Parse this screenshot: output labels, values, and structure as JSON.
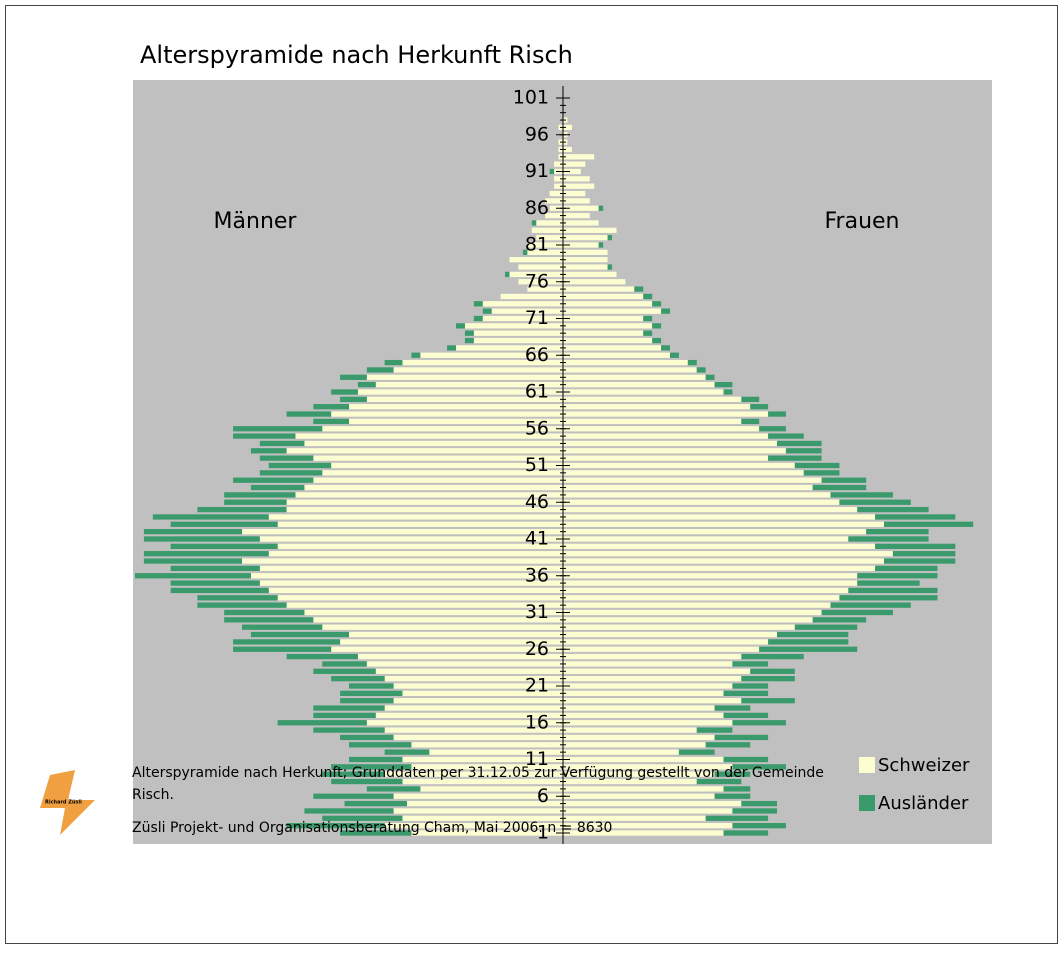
{
  "chart_data": {
    "type": "pyramid",
    "title": "Alterspyramide nach Herkunft Risch",
    "y": [
      1,
      2,
      3,
      4,
      5,
      6,
      7,
      8,
      9,
      10,
      11,
      12,
      13,
      14,
      15,
      16,
      17,
      18,
      19,
      20,
      21,
      22,
      23,
      24,
      25,
      26,
      27,
      28,
      29,
      30,
      31,
      32,
      33,
      34,
      35,
      36,
      37,
      38,
      39,
      40,
      41,
      42,
      43,
      44,
      45,
      46,
      47,
      48,
      49,
      50,
      51,
      52,
      53,
      54,
      55,
      56,
      57,
      58,
      59,
      60,
      61,
      62,
      63,
      64,
      65,
      66,
      67,
      68,
      69,
      70,
      71,
      72,
      73,
      74,
      75,
      76,
      77,
      78,
      79,
      80,
      81,
      82,
      83,
      84,
      85,
      86,
      87,
      88,
      89,
      90,
      91,
      92,
      93,
      94,
      95,
      96,
      97,
      98,
      99,
      100,
      101
    ],
    "ylim": [
      1,
      101
    ],
    "yticks": [
      1,
      6,
      11,
      16,
      21,
      26,
      31,
      36,
      41,
      46,
      51,
      56,
      61,
      66,
      71,
      76,
      81,
      86,
      91,
      96,
      101
    ],
    "sides": [
      {
        "label": "Männer",
        "series": [
          {
            "name": "Schweizer",
            "color": "#fdfdd2",
            "values": [
              34,
              40,
              36,
              38,
              35,
              38,
              32,
              36,
              40,
              34,
              36,
              30,
              34,
              38,
              40,
              44,
              42,
              40,
              38,
              36,
              38,
              40,
              42,
              44,
              46,
              52,
              50,
              48,
              54,
              56,
              58,
              62,
              64,
              66,
              68,
              70,
              68,
              72,
              66,
              64,
              68,
              72,
              64,
              66,
              62,
              62,
              60,
              58,
              56,
              54,
              52,
              56,
              62,
              58,
              60,
              54,
              48,
              52,
              48,
              44,
              46,
              42,
              44,
              38,
              36,
              32,
              24,
              20,
              20,
              22,
              18,
              16,
              18,
              14,
              8,
              10,
              12,
              10,
              12,
              8,
              8,
              6,
              7,
              6,
              4,
              3,
              4,
              3,
              2,
              2,
              2,
              2,
              1,
              1,
              1,
              0,
              1,
              0,
              0,
              0,
              0
            ]
          },
          {
            "name": "Ausländer",
            "color": "#3a9a6c",
            "values": [
              16,
              22,
              18,
              20,
              14,
              18,
              12,
              16,
              14,
              18,
              12,
              10,
              14,
              12,
              16,
              20,
              14,
              16,
              12,
              14,
              10,
              12,
              14,
              10,
              16,
              22,
              24,
              22,
              18,
              20,
              18,
              20,
              18,
              22,
              20,
              26,
              20,
              22,
              28,
              24,
              26,
              22,
              24,
              26,
              20,
              14,
              16,
              12,
              18,
              14,
              14,
              12,
              8,
              10,
              14,
              20,
              8,
              10,
              8,
              6,
              6,
              4,
              6,
              6,
              4,
              2,
              2,
              2,
              2,
              2,
              2,
              2,
              2,
              0,
              0,
              0,
              1,
              0,
              0,
              1,
              0,
              0,
              0,
              1,
              0,
              0,
              0,
              0,
              0,
              0,
              1,
              0,
              0,
              0,
              0,
              0,
              0,
              0,
              0,
              0,
              0
            ]
          }
        ]
      },
      {
        "label": "Frauen",
        "series": [
          {
            "name": "Schweizer",
            "color": "#fdfdd2",
            "values": [
              36,
              38,
              32,
              38,
              40,
              34,
              36,
              30,
              34,
              38,
              36,
              26,
              32,
              34,
              30,
              38,
              36,
              34,
              40,
              36,
              38,
              40,
              42,
              38,
              40,
              44,
              46,
              48,
              52,
              56,
              58,
              60,
              62,
              64,
              66,
              66,
              70,
              72,
              74,
              70,
              64,
              68,
              72,
              70,
              66,
              62,
              60,
              56,
              58,
              54,
              52,
              46,
              50,
              48,
              46,
              44,
              40,
              46,
              42,
              40,
              36,
              34,
              32,
              30,
              28,
              24,
              22,
              20,
              18,
              20,
              18,
              22,
              20,
              18,
              16,
              14,
              12,
              10,
              10,
              10,
              8,
              10,
              12,
              8,
              6,
              8,
              6,
              5,
              7,
              6,
              4,
              5,
              7,
              2,
              1,
              1,
              2,
              1,
              0,
              0,
              0
            ]
          },
          {
            "name": "Ausländer",
            "color": "#3a9a6c",
            "values": [
              10,
              12,
              14,
              10,
              8,
              8,
              6,
              10,
              8,
              12,
              10,
              8,
              10,
              12,
              8,
              12,
              10,
              8,
              12,
              10,
              8,
              12,
              10,
              8,
              14,
              22,
              18,
              16,
              14,
              12,
              16,
              18,
              22,
              20,
              14,
              18,
              14,
              16,
              14,
              18,
              18,
              14,
              20,
              18,
              16,
              16,
              14,
              12,
              10,
              8,
              10,
              12,
              8,
              10,
              8,
              6,
              4,
              4,
              4,
              4,
              2,
              4,
              2,
              2,
              2,
              2,
              2,
              2,
              2,
              2,
              2,
              2,
              2,
              2,
              2,
              0,
              0,
              1,
              0,
              0,
              1,
              1,
              0,
              0,
              0,
              1,
              0,
              0,
              0,
              0,
              0,
              0,
              0,
              0,
              0,
              0,
              0,
              0,
              0,
              0,
              0
            ]
          }
        ]
      }
    ],
    "footer": [
      "Alterspyramide nach Herkunft; Grunddaten per 31.12.05 zur Verfügung gestellt von der Gemeinde",
      "Risch.",
      "Züsli Projekt- und Organisationsberatung Cham, Mai 2006. n = 8630"
    ],
    "logo": "Richard Züsli"
  }
}
